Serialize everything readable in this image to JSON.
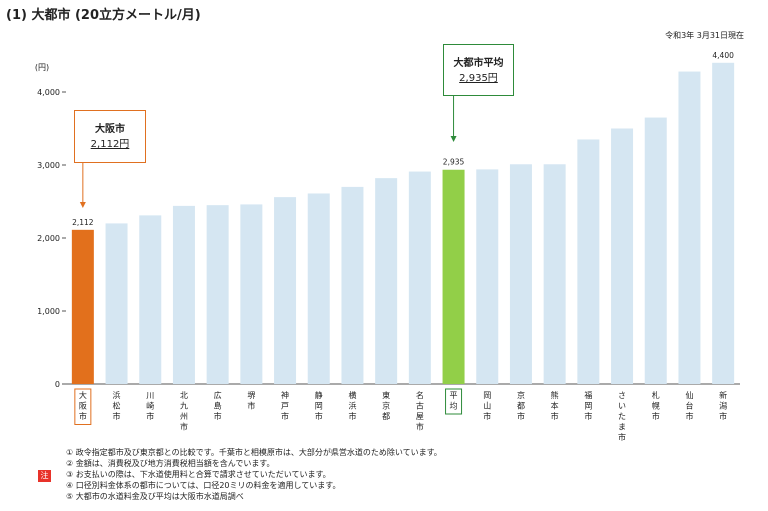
{
  "title": "(1) 大都市 (20立方メートル/月)",
  "date_note": "令和3年 3月31日現在",
  "chart_data": {
    "type": "bar",
    "unit_label": "(円)",
    "ylim": [
      0,
      4400
    ],
    "yticks": [
      "0",
      "1,000",
      "2,000",
      "3,000",
      "4,000"
    ],
    "ytick_values": [
      0,
      1000,
      2000,
      3000,
      4000
    ],
    "grid": false,
    "categories": [
      "大阪市",
      "浜松市",
      "川崎市",
      "北九州市",
      "広島市",
      "堺市",
      "神戸市",
      "静岡市",
      "横浜市",
      "東京都",
      "名古屋市",
      "平均",
      "岡山市",
      "京都市",
      "熊本市",
      "福岡市",
      "さいたま市",
      "札幌市",
      "仙台市",
      "新潟市"
    ],
    "values": [
      2112,
      2200,
      2310,
      2440,
      2450,
      2460,
      2560,
      2610,
      2700,
      2820,
      2910,
      2935,
      2940,
      3010,
      3010,
      3350,
      3500,
      3650,
      4280,
      4400
    ],
    "data_labels": [
      {
        "index": 0,
        "text": "2,112"
      },
      {
        "index": 11,
        "text": "2,935"
      },
      {
        "index": 19,
        "text": "4,400"
      }
    ],
    "colors": {
      "default": "#d5e6f2",
      "highlight_osaka": "#e2701c",
      "highlight_avg": "#92cf48",
      "osaka_border": "#e07020",
      "avg_border": "#2e8b3a"
    }
  },
  "callouts": {
    "osaka": {
      "name": "大阪市",
      "value": "2,112円"
    },
    "average": {
      "name": "大都市平均",
      "value": "2,935円"
    }
  },
  "notes": {
    "badge": "注",
    "items": [
      "① 政令指定都市及び東京都との比較です。千葉市と相模原市は、大部分が県営水道のため除いています。",
      "② 金額は、消費税及び地方消費税相当額を含んでいます。",
      "③ お支払いの際は、下水道使用料と合算で請求させていただいています。",
      "④ 口径別料金体系の都市については、口径20ミリの料金を適用しています。",
      "⑤ 大都市の水道料金及び平均は大阪市水道局調べ"
    ]
  }
}
